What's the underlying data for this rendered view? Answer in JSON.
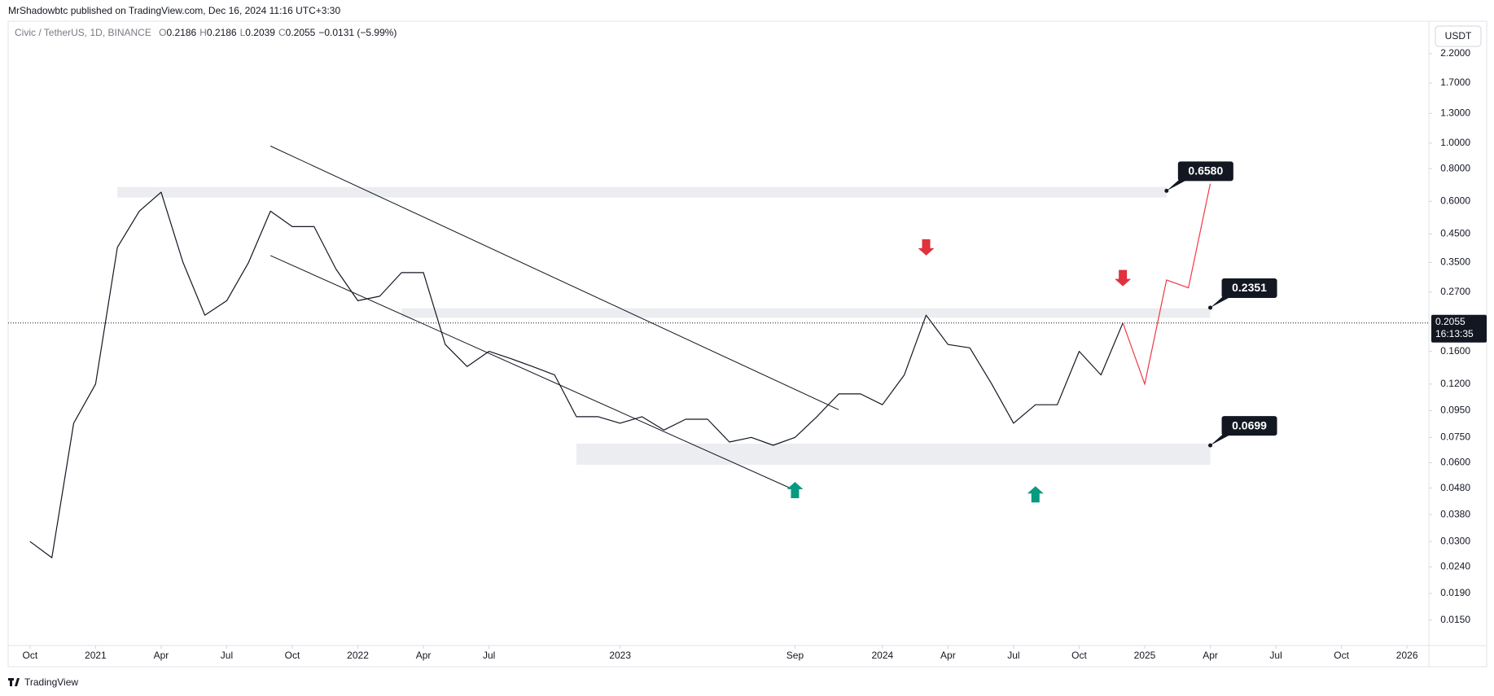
{
  "header": {
    "publisher": "MrShadowbtc published on TradingView.com, Dec 16, 2024 11:16 UTC+3:30"
  },
  "footer": {
    "brand": "TradingView"
  },
  "chart_data": {
    "type": "line",
    "symbol": "Civic / TetherUS, 1D, BINANCE",
    "ohlc": [
      {
        "key": "O",
        "value": 0.2186
      },
      {
        "key": "H",
        "value": 0.2186
      },
      {
        "key": "L",
        "value": 0.2039
      },
      {
        "key": "C",
        "value": 0.2055
      }
    ],
    "change": "−0.0131 (−5.99%)",
    "currency": "USDT",
    "log_scale": true,
    "color": "#131722",
    "x": [
      "2020-10",
      "2020-11",
      "2020-12",
      "2021-01",
      "2021-02",
      "2021-03",
      "2021-04",
      "2021-05",
      "2021-06",
      "2021-07",
      "2021-08",
      "2021-09",
      "2021-10",
      "2021-11",
      "2021-12",
      "2022-01",
      "2022-02",
      "2022-03",
      "2022-04",
      "2022-05",
      "2022-06",
      "2022-07",
      "2022-08",
      "2022-09",
      "2022-10",
      "2022-11",
      "2022-12",
      "2023-01",
      "2023-02",
      "2023-03",
      "2023-04",
      "2023-05",
      "2023-06",
      "2023-07",
      "2023-08",
      "2023-09",
      "2023-10",
      "2023-11",
      "2023-12",
      "2024-01",
      "2024-02",
      "2024-03",
      "2024-04",
      "2024-05",
      "2024-06",
      "2024-07",
      "2024-08",
      "2024-09",
      "2024-10",
      "2024-11",
      "2024-12"
    ],
    "values": [
      0.03,
      0.026,
      0.085,
      0.12,
      0.4,
      0.55,
      0.65,
      0.35,
      0.22,
      0.25,
      0.35,
      0.55,
      0.48,
      0.48,
      0.33,
      0.25,
      0.26,
      0.32,
      0.32,
      0.17,
      0.14,
      0.16,
      0.15,
      0.14,
      0.13,
      0.09,
      0.09,
      0.085,
      0.09,
      0.08,
      0.088,
      0.088,
      0.072,
      0.075,
      0.07,
      0.075,
      0.09,
      0.11,
      0.11,
      0.1,
      0.13,
      0.22,
      0.17,
      0.165,
      0.12,
      0.085,
      0.1,
      0.1,
      0.16,
      0.13,
      0.2055
    ],
    "last_price": 0.2055,
    "countdown": "16:13:35",
    "ylim": [
      0.012,
      2.93
    ],
    "yticks": [
      {
        "value": 2.2,
        "label": "2.2000"
      },
      {
        "value": 1.7,
        "label": "1.7000"
      },
      {
        "value": 1.3,
        "label": "1.3000"
      },
      {
        "value": 1.0,
        "label": "1.0000"
      },
      {
        "value": 0.8,
        "label": "0.8000"
      },
      {
        "value": 0.6,
        "label": "0.6000"
      },
      {
        "value": 0.45,
        "label": "0.4500"
      },
      {
        "value": 0.35,
        "label": "0.3500"
      },
      {
        "value": 0.27,
        "label": "0.2700"
      },
      {
        "value": 0.16,
        "label": "0.1600"
      },
      {
        "value": 0.12,
        "label": "0.1200"
      },
      {
        "value": 0.095,
        "label": "0.0950"
      },
      {
        "value": 0.075,
        "label": "0.0750"
      },
      {
        "value": 0.06,
        "label": "0.0600"
      },
      {
        "value": 0.048,
        "label": "0.0480"
      },
      {
        "value": 0.038,
        "label": "0.0380"
      },
      {
        "value": 0.03,
        "label": "0.0300"
      },
      {
        "value": 0.024,
        "label": "0.0240"
      },
      {
        "value": 0.019,
        "label": "0.0190"
      },
      {
        "value": 0.015,
        "label": "0.0150"
      }
    ],
    "xlim": [
      "2020-09",
      "2026-02"
    ],
    "xticks": [
      {
        "value": "2020-10",
        "label": "Oct"
      },
      {
        "value": "2021-01",
        "label": "2021"
      },
      {
        "value": "2021-04",
        "label": "Apr"
      },
      {
        "value": "2021-07",
        "label": "Jul"
      },
      {
        "value": "2021-10",
        "label": "Oct"
      },
      {
        "value": "2022-01",
        "label": "2022"
      },
      {
        "value": "2022-04",
        "label": "Apr"
      },
      {
        "value": "2022-07",
        "label": "Jul"
      },
      {
        "value": "2023-01",
        "label": "2023"
      },
      {
        "value": "2023-09",
        "label": "Sep"
      },
      {
        "value": "2024-01",
        "label": "2024"
      },
      {
        "value": "2024-04",
        "label": "Apr"
      },
      {
        "value": "2024-07",
        "label": "Jul"
      },
      {
        "value": "2024-10",
        "label": "Oct"
      },
      {
        "value": "2025-01",
        "label": "2025"
      },
      {
        "value": "2025-04",
        "label": "Apr"
      },
      {
        "value": "2025-07",
        "label": "Jul"
      },
      {
        "value": "2025-10",
        "label": "Oct"
      },
      {
        "value": "2026-01",
        "label": "2026"
      }
    ],
    "zones": [
      {
        "from": "2021-02",
        "to": "2025-02",
        "range": [
          0.62,
          0.68
        ],
        "level": {
          "value": 0.658,
          "label": "0.6580"
        }
      },
      {
        "from": "2022-03",
        "to": "2025-04",
        "range": [
          0.215,
          0.234
        ],
        "level": {
          "value": 0.2351,
          "label": "0.2351"
        }
      },
      {
        "from": "2022-11",
        "to": "2025-04",
        "range": [
          0.059,
          0.071
        ],
        "level": {
          "value": 0.0699,
          "label": "0.0699"
        }
      }
    ],
    "channel": [
      {
        "from": "2021-09",
        "to": "2023-11",
        "values": [
          0.976,
          0.0957
        ]
      },
      {
        "from": "2021-09",
        "to": "2023-09",
        "values": [
          0.372,
          0.0471
        ]
      }
    ],
    "arrows": [
      {
        "x": "2024-03",
        "value": 0.372,
        "direction": "down",
        "color": "#e0313c"
      },
      {
        "x": "2024-12",
        "value": 0.284,
        "direction": "down",
        "color": "#e0313c"
      },
      {
        "x": "2023-09",
        "value": 0.0507,
        "direction": "up",
        "color": "#089981"
      },
      {
        "x": "2024-08",
        "value": 0.0488,
        "direction": "up",
        "color": "#089981"
      }
    ],
    "projection": {
      "color": "#f23645",
      "x": [
        "2024-12",
        "2025-01",
        "2025-02",
        "2025-03",
        "2025-04"
      ],
      "values": [
        0.2055,
        0.12,
        0.3,
        0.28,
        0.7
      ]
    }
  }
}
